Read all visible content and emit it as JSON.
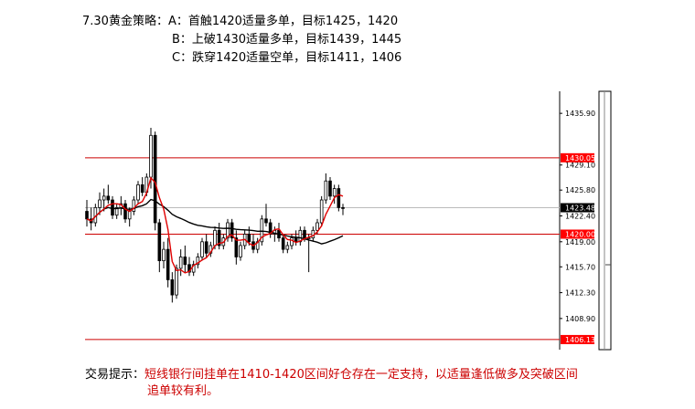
{
  "strategy": {
    "title": "7.30黄金策略：",
    "lines": [
      "A：首触1420适量多单，目标1425，1420",
      "B：上破1430适量多单，目标1439，1445",
      "C：跌穿1420适量空单，目标1411，1406"
    ]
  },
  "tip": {
    "label": "交易提示：",
    "text_line1": "短线银行间挂单在1410-1420区间好仓存在一定支持，以适量逢低做多及突破区间",
    "text_line2": "追单较有利。"
  },
  "colors": {
    "level_line": "#cc0000",
    "candle": "#000000",
    "ma_fast": "#e00000",
    "ma_slow": "#000000",
    "price_tag_red": "#ff0000",
    "price_tag_dark": "#000000"
  },
  "chart_data": {
    "type": "candlestick",
    "y_axis_ticks": [
      "1435.90",
      "1429.10",
      "1425.80",
      "1422.40",
      "1419.00",
      "1415.70",
      "1412.30",
      "1408.90"
    ],
    "ylim": [
      1404.8,
      1438.8
    ],
    "horizontal_levels": [
      {
        "label": "1430.05",
        "value": 1430.05
      },
      {
        "label": "1420.00",
        "value": 1420.0
      },
      {
        "label": "1406.13",
        "value": 1406.13
      }
    ],
    "current_price": {
      "label": "1423.48",
      "value": 1423.48
    },
    "candles": [
      [
        1423.0,
        1424.5,
        1421.0,
        1422.0
      ],
      [
        1422.0,
        1423.5,
        1420.5,
        1421.5
      ],
      [
        1421.5,
        1424.0,
        1421.0,
        1423.5
      ],
      [
        1423.5,
        1425.5,
        1422.5,
        1424.5
      ],
      [
        1424.5,
        1426.0,
        1423.0,
        1425.0
      ],
      [
        1425.0,
        1426.5,
        1424.0,
        1424.5
      ],
      [
        1424.5,
        1425.0,
        1422.0,
        1422.5
      ],
      [
        1422.5,
        1424.0,
        1422.0,
        1423.5
      ],
      [
        1423.5,
        1425.0,
        1422.5,
        1424.0
      ],
      [
        1424.0,
        1424.5,
        1421.5,
        1422.0
      ],
      [
        1422.0,
        1423.5,
        1421.0,
        1423.0
      ],
      [
        1423.0,
        1425.0,
        1422.5,
        1424.5
      ],
      [
        1424.5,
        1427.0,
        1424.0,
        1426.5
      ],
      [
        1426.5,
        1427.5,
        1425.0,
        1425.5
      ],
      [
        1425.5,
        1428.0,
        1425.0,
        1427.5
      ],
      [
        1427.5,
        1434.0,
        1426.0,
        1433.0
      ],
      [
        1433.0,
        1433.5,
        1420.5,
        1421.5
      ],
      [
        1421.5,
        1422.0,
        1415.0,
        1416.5
      ],
      [
        1416.5,
        1419.0,
        1415.5,
        1418.0
      ],
      [
        1418.0,
        1419.5,
        1413.0,
        1414.0
      ],
      [
        1414.0,
        1415.0,
        1411.0,
        1412.0
      ],
      [
        1412.0,
        1416.0,
        1411.5,
        1415.5
      ],
      [
        1415.5,
        1418.0,
        1414.5,
        1417.0
      ],
      [
        1417.0,
        1418.5,
        1415.0,
        1416.0
      ],
      [
        1416.0,
        1417.0,
        1414.5,
        1415.0
      ],
      [
        1415.0,
        1416.5,
        1414.5,
        1416.0
      ],
      [
        1416.0,
        1417.5,
        1415.5,
        1417.0
      ],
      [
        1417.0,
        1419.5,
        1416.5,
        1419.0
      ],
      [
        1419.0,
        1420.0,
        1417.0,
        1417.5
      ],
      [
        1417.5,
        1419.0,
        1417.0,
        1418.5
      ],
      [
        1418.5,
        1421.0,
        1418.0,
        1420.5
      ],
      [
        1420.5,
        1421.5,
        1418.0,
        1418.5
      ],
      [
        1418.5,
        1420.0,
        1418.0,
        1419.5
      ],
      [
        1419.5,
        1422.0,
        1419.0,
        1421.5
      ],
      [
        1421.5,
        1422.0,
        1419.0,
        1419.5
      ],
      [
        1419.5,
        1420.5,
        1416.0,
        1417.0
      ],
      [
        1417.0,
        1419.0,
        1416.5,
        1418.5
      ],
      [
        1418.5,
        1420.5,
        1418.0,
        1420.0
      ],
      [
        1420.0,
        1421.0,
        1418.5,
        1419.0
      ],
      [
        1419.0,
        1420.0,
        1417.5,
        1418.0
      ],
      [
        1418.0,
        1419.5,
        1417.5,
        1419.0
      ],
      [
        1419.0,
        1422.5,
        1418.5,
        1422.0
      ],
      [
        1422.0,
        1424.0,
        1421.0,
        1421.5
      ],
      [
        1421.5,
        1422.0,
        1419.5,
        1420.0
      ],
      [
        1420.0,
        1421.0,
        1419.0,
        1420.5
      ],
      [
        1420.5,
        1421.5,
        1419.0,
        1419.5
      ],
      [
        1419.5,
        1420.0,
        1417.5,
        1418.0
      ],
      [
        1418.0,
        1419.0,
        1417.5,
        1418.5
      ],
      [
        1418.5,
        1420.0,
        1418.0,
        1419.5
      ],
      [
        1419.5,
        1420.5,
        1418.5,
        1419.0
      ],
      [
        1419.0,
        1421.0,
        1418.5,
        1420.5
      ],
      [
        1420.5,
        1421.0,
        1419.0,
        1419.5
      ],
      [
        1419.5,
        1420.0,
        1415.0,
        1419.5
      ],
      [
        1419.5,
        1421.0,
        1419.0,
        1420.5
      ],
      [
        1420.5,
        1422.0,
        1420.0,
        1421.5
      ],
      [
        1421.5,
        1425.0,
        1421.0,
        1424.5
      ],
      [
        1424.5,
        1428.0,
        1424.0,
        1427.0
      ],
      [
        1427.0,
        1427.5,
        1424.5,
        1425.0
      ],
      [
        1425.0,
        1426.5,
        1424.0,
        1426.0
      ],
      [
        1426.0,
        1426.5,
        1423.0,
        1423.5
      ],
      [
        1423.5,
        1424.0,
        1422.5,
        1423.48
      ]
    ]
  }
}
